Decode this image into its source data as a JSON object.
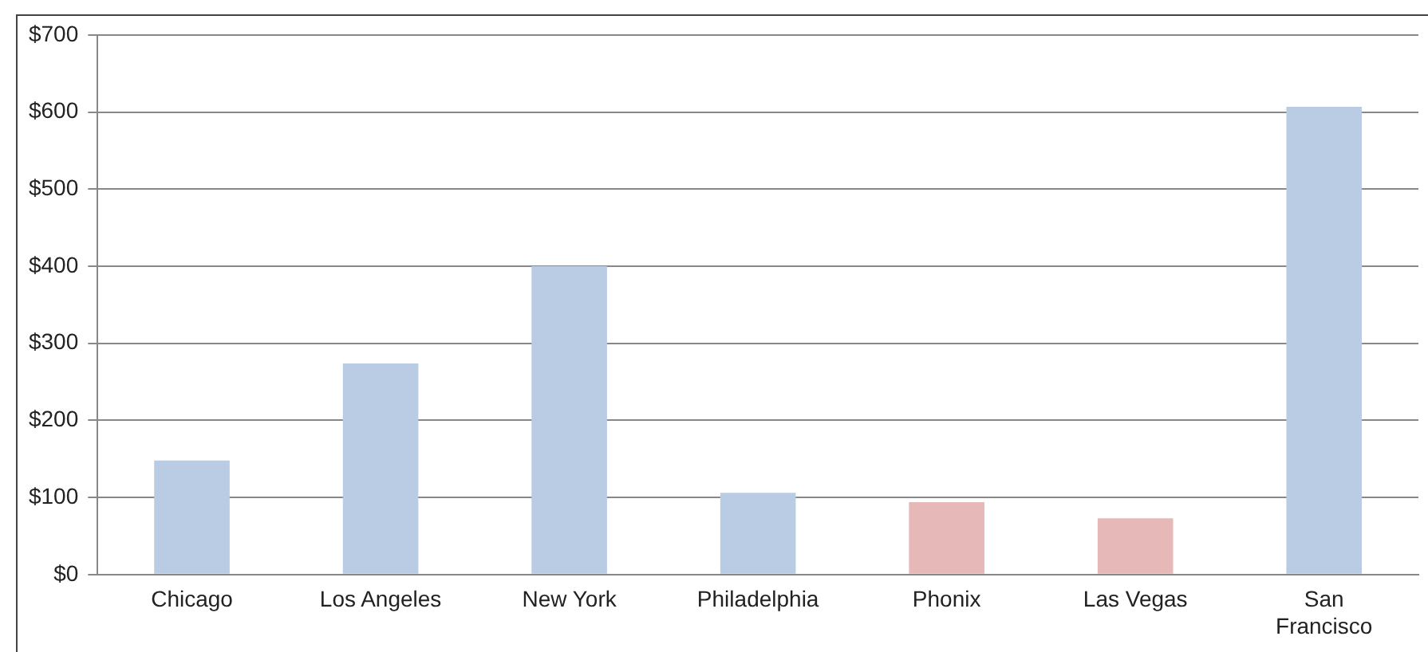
{
  "chart_data": {
    "type": "bar",
    "categories": [
      "Chicago",
      "Los Angeles",
      "New York",
      "Philadelphia",
      "Phonix",
      "Las Vegas",
      "San Francisco"
    ],
    "values": [
      148,
      274,
      400,
      106,
      94,
      73,
      607
    ],
    "colors": [
      "#b9cce4",
      "#b9cce4",
      "#b9cce4",
      "#b9cce4",
      "#e6b9b8",
      "#e6b9b8",
      "#b9cce4"
    ],
    "ylim": [
      0,
      700
    ],
    "yticks": [
      {
        "value": 0,
        "label": "$0"
      },
      {
        "value": 100,
        "label": "$100"
      },
      {
        "value": 200,
        "label": "$200"
      },
      {
        "value": 300,
        "label": "$300"
      },
      {
        "value": 400,
        "label": "$400"
      },
      {
        "value": 500,
        "label": "$500"
      },
      {
        "value": 600,
        "label": "$600"
      },
      {
        "value": 700,
        "label": "$700"
      }
    ],
    "grid": "y",
    "legend": false
  }
}
